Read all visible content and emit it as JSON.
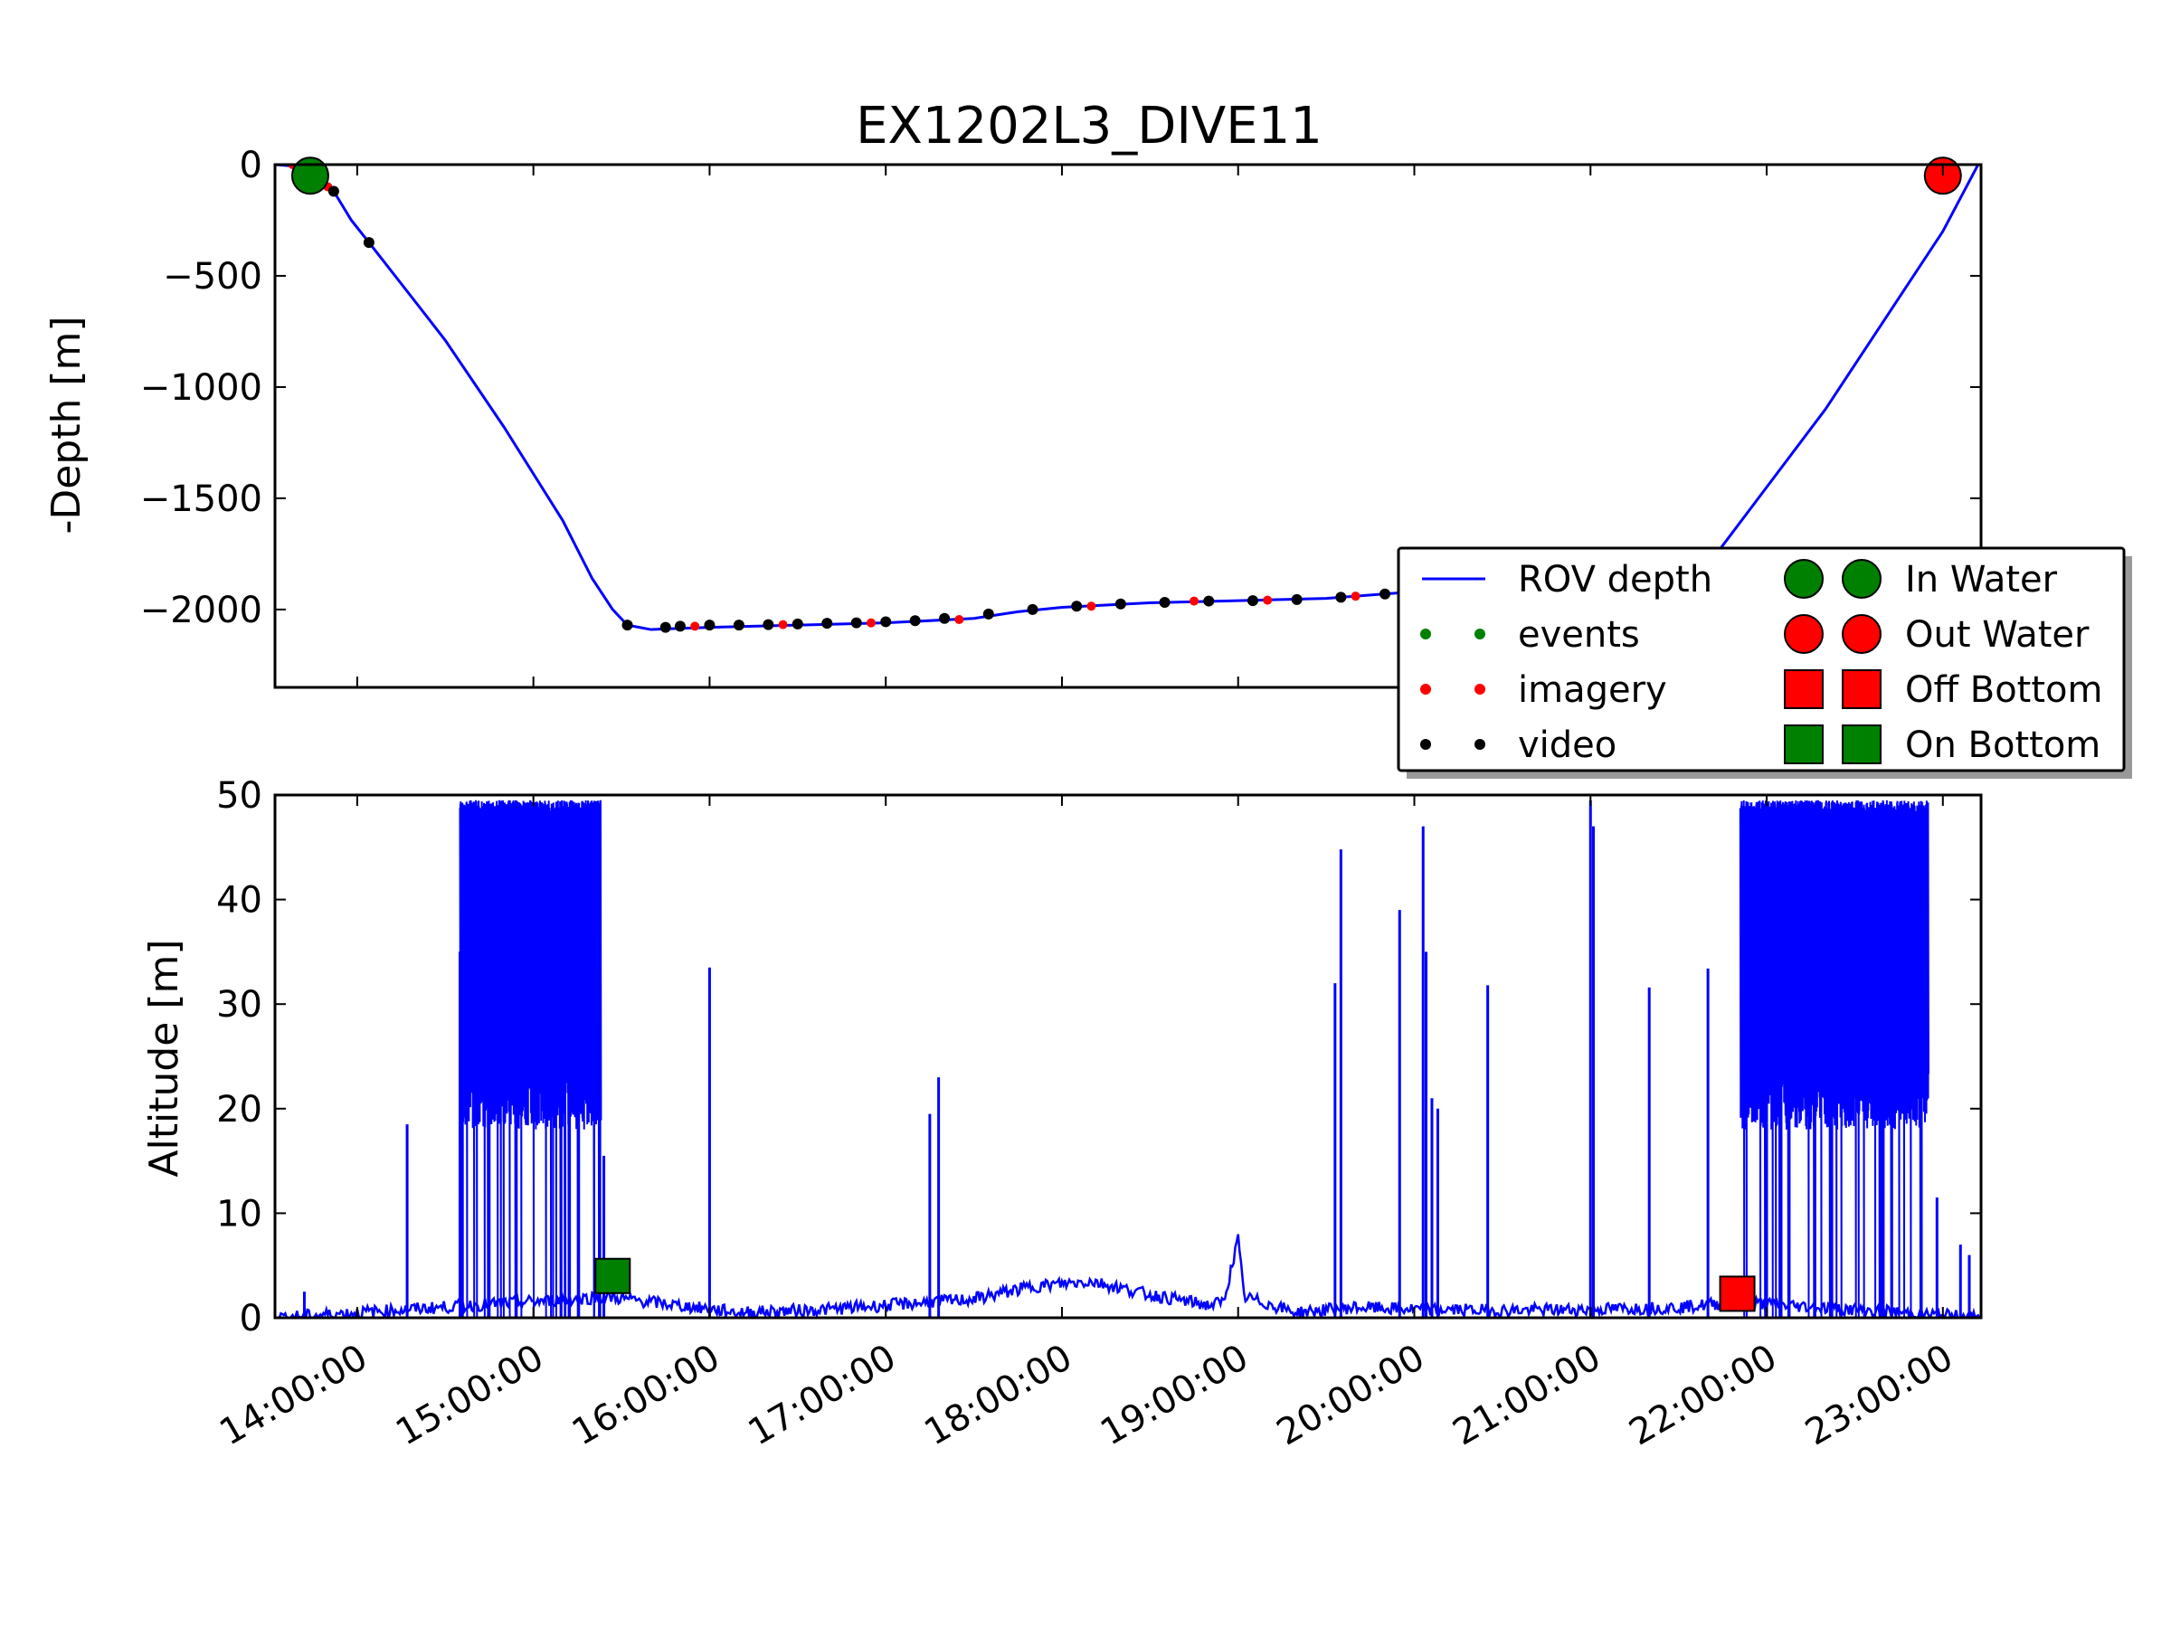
{
  "chart_data": {
    "title": "EX1202L3_DIVE11",
    "type": "line",
    "x_ticks": [
      "14:00:00",
      "15:00:00",
      "16:00:00",
      "17:00:00",
      "18:00:00",
      "19:00:00",
      "20:00:00",
      "21:00:00",
      "22:00:00",
      "23:00:00"
    ],
    "x_range": [
      "13:32:00",
      "23:13:00"
    ],
    "colors": {
      "rov_depth": "#0000ff",
      "events": "#008000",
      "imagery": "#ff0000",
      "video": "#000000",
      "in_water": "#008000",
      "out_water": "#ff0000",
      "off_bottom": "#ff0000",
      "on_bottom": "#008000"
    },
    "legend": {
      "placement": "right",
      "entries": [
        "ROV depth",
        "events",
        "imagery",
        "video",
        "In Water",
        "Out Water",
        "Off Bottom",
        "On Bottom"
      ]
    },
    "depth_panel": {
      "ylabel": "-Depth [m]",
      "ylim": [
        -2350,
        0
      ],
      "yticks": [
        0,
        -500,
        -1000,
        -1500,
        -2000
      ],
      "ytick_labels": [
        "0",
        "−500",
        "−1000",
        "−1500",
        "−2000"
      ],
      "rov_depth": [
        [
          "13:32",
          0
        ],
        [
          "13:42",
          -10
        ],
        [
          "13:45",
          -30
        ],
        [
          "13:48",
          -60
        ],
        [
          "13:52",
          -120
        ],
        [
          "13:58",
          -250
        ],
        [
          "14:04",
          -350
        ],
        [
          "14:20",
          -620
        ],
        [
          "14:30",
          -790
        ],
        [
          "14:50",
          -1180
        ],
        [
          "15:00",
          -1390
        ],
        [
          "15:10",
          -1600
        ],
        [
          "15:20",
          -1860
        ],
        [
          "15:27",
          -2000
        ],
        [
          "15:32",
          -2070
        ],
        [
          "15:40",
          -2090
        ],
        [
          "16:00",
          -2080
        ],
        [
          "16:30",
          -2070
        ],
        [
          "17:00",
          -2060
        ],
        [
          "17:30",
          -2040
        ],
        [
          "17:45",
          -2010
        ],
        [
          "18:00",
          -1990
        ],
        [
          "18:30",
          -1970
        ],
        [
          "19:00",
          -1960
        ],
        [
          "19:30",
          -1950
        ],
        [
          "20:00",
          -1920
        ],
        [
          "20:30",
          -1900
        ],
        [
          "21:30",
          -1900
        ],
        [
          "21:40",
          -1800
        ],
        [
          "22:00",
          -1450
        ],
        [
          "22:20",
          -1100
        ],
        [
          "22:40",
          -700
        ],
        [
          "23:00",
          -300
        ],
        [
          "23:10",
          -50
        ],
        [
          "23:12",
          0
        ]
      ],
      "video_points": [
        [
          "13:52",
          -120
        ],
        [
          "14:04",
          -350
        ],
        [
          "15:32",
          -2070
        ],
        [
          "15:45",
          -2080
        ],
        [
          "15:50",
          -2075
        ],
        [
          "16:00",
          -2070
        ],
        [
          "16:10",
          -2070
        ],
        [
          "16:20",
          -2068
        ],
        [
          "16:30",
          -2065
        ],
        [
          "16:40",
          -2062
        ],
        [
          "16:50",
          -2060
        ],
        [
          "17:00",
          -2055
        ],
        [
          "17:10",
          -2050
        ],
        [
          "17:20",
          -2040
        ],
        [
          "17:35",
          -2020
        ],
        [
          "17:50",
          -2000
        ],
        [
          "18:05",
          -1985
        ],
        [
          "18:20",
          -1975
        ],
        [
          "18:35",
          -1968
        ],
        [
          "18:50",
          -1962
        ],
        [
          "19:05",
          -1960
        ],
        [
          "19:20",
          -1955
        ],
        [
          "19:35",
          -1945
        ],
        [
          "19:50",
          -1930
        ],
        [
          "20:05",
          -1915
        ],
        [
          "20:20",
          -1905
        ],
        [
          "20:35",
          -1900
        ]
      ],
      "imagery_points": [
        [
          "13:38",
          0
        ],
        [
          "13:50",
          -100
        ],
        [
          "15:55",
          -2075
        ],
        [
          "16:25",
          -2068
        ],
        [
          "16:55",
          -2060
        ],
        [
          "17:25",
          -2045
        ],
        [
          "18:10",
          -1985
        ],
        [
          "18:45",
          -1962
        ],
        [
          "19:10",
          -1958
        ],
        [
          "19:40",
          -1940
        ]
      ],
      "in_water": [
        "13:44",
        -50
      ],
      "out_water": [
        "23:00",
        -50
      ]
    },
    "altitude_panel": {
      "ylabel": "Altitude [m]",
      "ylim": [
        0,
        50
      ],
      "yticks": [
        0,
        10,
        20,
        30,
        40,
        50
      ],
      "ytick_labels": [
        "0",
        "10",
        "20",
        "30",
        "40",
        "50"
      ],
      "noisy_bands": [
        {
          "start": "14:35",
          "end": "15:23",
          "low": 18,
          "high": 49.5
        },
        {
          "start": "21:51",
          "end": "22:55",
          "low": 18,
          "high": 49.5
        }
      ],
      "spikes": [
        [
          "13:42",
          2.5
        ],
        [
          "14:17",
          18.5
        ],
        [
          "14:35",
          35
        ],
        [
          "15:24",
          15.5
        ],
        [
          "16:00",
          33.5
        ],
        [
          "17:15",
          19.5
        ],
        [
          "17:18",
          23
        ],
        [
          "19:33",
          32
        ],
        [
          "19:35",
          44.8
        ],
        [
          "19:55",
          39
        ],
        [
          "20:03",
          47
        ],
        [
          "20:04",
          35
        ],
        [
          "20:06",
          21
        ],
        [
          "20:08",
          20
        ],
        [
          "20:25",
          31.8
        ],
        [
          "21:00",
          49.5
        ],
        [
          "21:01",
          47
        ],
        [
          "21:20",
          31.6
        ],
        [
          "21:40",
          33.4
        ],
        [
          "22:58",
          11.5
        ],
        [
          "23:06",
          7
        ],
        [
          "23:09",
          6
        ]
      ],
      "baseline": [
        [
          "13:32",
          0
        ],
        [
          "15:25",
          2
        ],
        [
          "15:40",
          1.5
        ],
        [
          "16:10",
          0.5
        ],
        [
          "16:40",
          0.8
        ],
        [
          "17:00",
          1.2
        ],
        [
          "17:30",
          1.8
        ],
        [
          "17:50",
          3
        ],
        [
          "18:10",
          3.5
        ],
        [
          "18:30",
          2.2
        ],
        [
          "18:50",
          1.2
        ],
        [
          "18:55",
          1.5
        ],
        [
          "19:00",
          7.5
        ],
        [
          "19:02",
          2
        ],
        [
          "19:20",
          0.5
        ],
        [
          "19:40",
          1
        ],
        [
          "20:00",
          0.8
        ],
        [
          "20:30",
          0.7
        ],
        [
          "21:00",
          0.8
        ],
        [
          "21:30",
          1
        ],
        [
          "21:50",
          1.5
        ],
        [
          "23:13",
          0
        ]
      ],
      "on_bottom": [
        "15:27",
        4
      ],
      "off_bottom": [
        "21:50",
        2.3
      ]
    }
  }
}
